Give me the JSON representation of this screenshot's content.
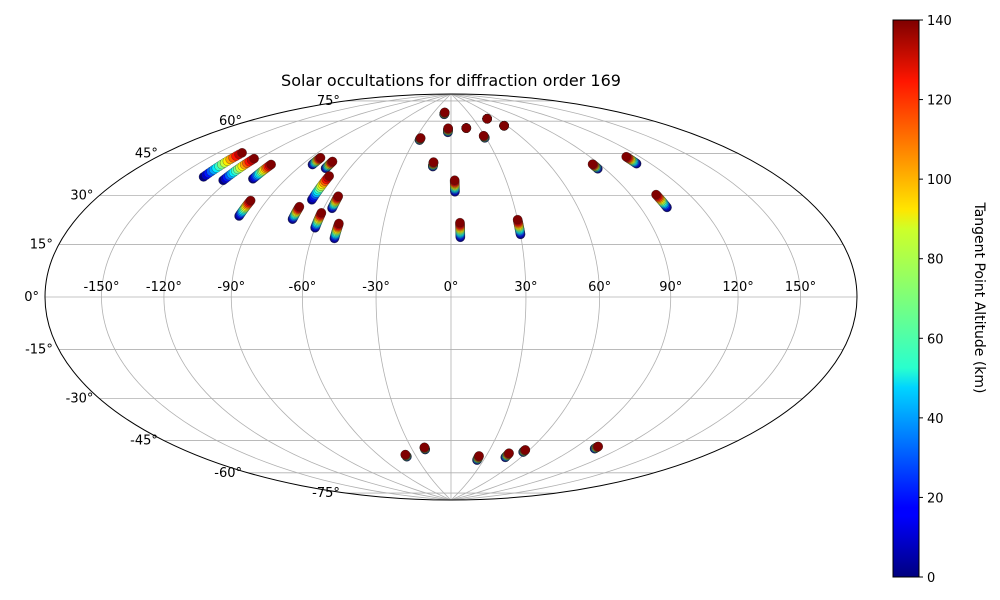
{
  "chart_data": {
    "type": "scatter",
    "projection": "hammer",
    "title": "Solar occultations for diffraction order 169",
    "xlabel": "",
    "ylabel": "",
    "grid": true,
    "x_ticks": [
      "-150°",
      "-120°",
      "-90°",
      "-60°",
      "-30°",
      "0°",
      "30°",
      "60°",
      "90°",
      "120°",
      "150°"
    ],
    "y_ticks": [
      "75°",
      "60°",
      "45°",
      "30°",
      "15°",
      "0°",
      "-15°",
      "-30°",
      "-45°",
      "-60°",
      "-75°"
    ],
    "colorbar": {
      "label": "Tangent Point Altitude (km)",
      "colormap": "jet",
      "range": [
        0,
        140
      ],
      "ticks": [
        "0",
        "20",
        "40",
        "60",
        "80",
        "100",
        "120",
        "140"
      ]
    },
    "occultations": [
      {
        "lon": -136,
        "lat_bottom": 42,
        "lat_top": 52
      },
      {
        "lon": -123,
        "lat_bottom": 42,
        "lat_top": 51
      },
      {
        "lon": -108,
        "lat_bottom": 44,
        "lat_top": 50
      },
      {
        "lon": -98,
        "lat_bottom": 30,
        "lat_top": 36
      },
      {
        "lon": -84,
        "lat_bottom": 52,
        "lat_top": 55
      },
      {
        "lon": -74,
        "lat_bottom": 51,
        "lat_top": 54
      },
      {
        "lon": -72,
        "lat_bottom": 30,
        "lat_top": 35
      },
      {
        "lon": -68,
        "lat_bottom": 38,
        "lat_top": 48
      },
      {
        "lon": -60,
        "lat_bottom": 27,
        "lat_top": 33
      },
      {
        "lon": -56,
        "lat_bottom": 35,
        "lat_top": 40
      },
      {
        "lon": -50,
        "lat_bottom": 23,
        "lat_top": 29
      },
      {
        "lon": -26,
        "lat_bottom": 66,
        "lat_top": 67
      },
      {
        "lon": -11,
        "lat_bottom": 54,
        "lat_top": 56
      },
      {
        "lon": -11,
        "lat_bottom": 79,
        "lat_top": 80
      },
      {
        "lon": -3,
        "lat_bottom": 70,
        "lat_top": 72
      },
      {
        "lon": 2,
        "lat_bottom": 43,
        "lat_top": 48
      },
      {
        "lon": 4,
        "lat_bottom": 24,
        "lat_top": 30
      },
      {
        "lon": 30,
        "lat_bottom": 25,
        "lat_top": 31
      },
      {
        "lon": 16,
        "lat_bottom": 72,
        "lat_top": 72
      },
      {
        "lon": 29,
        "lat_bottom": 67,
        "lat_top": 68
      },
      {
        "lon": 48,
        "lat_bottom": 76,
        "lat_top": 76
      },
      {
        "lon": 57,
        "lat_bottom": 72,
        "lat_top": 72
      },
      {
        "lon": 86,
        "lat_bottom": 50,
        "lat_top": 52
      },
      {
        "lon": 103,
        "lat_bottom": 33,
        "lat_top": 38
      },
      {
        "lon": 112,
        "lat_bottom": 50,
        "lat_top": 53
      },
      {
        "lon": -38,
        "lat_bottom": -67,
        "lat_top": -66
      },
      {
        "lon": -20,
        "lat_bottom": -64,
        "lat_top": -63
      },
      {
        "lon": 24,
        "lat_bottom": -69,
        "lat_top": -67
      },
      {
        "lon": 47,
        "lat_bottom": -67,
        "lat_top": -65
      },
      {
        "lon": 57,
        "lat_bottom": -64,
        "lat_top": -63
      },
      {
        "lon": 104,
        "lat_bottom": -59,
        "lat_top": -58
      }
    ]
  }
}
